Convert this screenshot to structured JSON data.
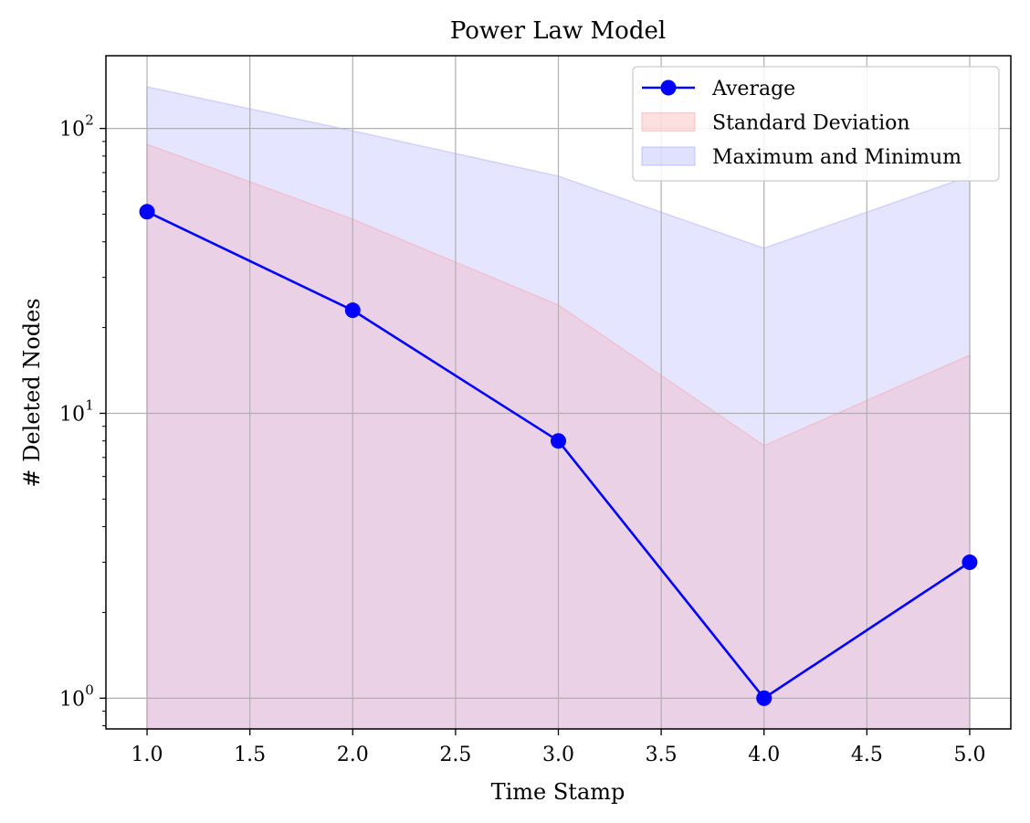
{
  "chart_data": {
    "type": "line",
    "title": "Power Law Model",
    "xlabel": "Time Stamp",
    "ylabel": "# Deleted Nodes",
    "xlim": [
      0.8,
      5.2
    ],
    "ylim": [
      0.78,
      180
    ],
    "yscale": "log",
    "grid": true,
    "legend_position": "top-right",
    "x": [
      1,
      2,
      3,
      4,
      5
    ],
    "xticks": [
      "1.0",
      "1.5",
      "2.0",
      "2.5",
      "3.0",
      "3.5",
      "4.0",
      "4.5",
      "5.0"
    ],
    "xtick_values": [
      1.0,
      1.5,
      2.0,
      2.5,
      3.0,
      3.5,
      4.0,
      4.5,
      5.0
    ],
    "yticks": [
      {
        "value": 1,
        "base": "10",
        "exp": "0"
      },
      {
        "value": 10,
        "base": "10",
        "exp": "1"
      },
      {
        "value": 100,
        "base": "10",
        "exp": "2"
      }
    ],
    "series": [
      {
        "name": "Average",
        "kind": "line-marker",
        "color": "#0000ff",
        "values": [
          51,
          23,
          8,
          1,
          3
        ]
      },
      {
        "name": "Standard Deviation",
        "kind": "band",
        "color": "#ff9999",
        "upper": [
          88,
          48,
          24,
          7.7,
          16
        ],
        "lower": [
          0.78,
          0.78,
          0.78,
          0.78,
          0.78
        ]
      },
      {
        "name": "Maximum and Minimum",
        "kind": "band",
        "color": "#9999ff",
        "upper": [
          140,
          98,
          68,
          38,
          68
        ],
        "lower": [
          0.78,
          0.78,
          0.78,
          0.78,
          0.78
        ]
      }
    ]
  }
}
